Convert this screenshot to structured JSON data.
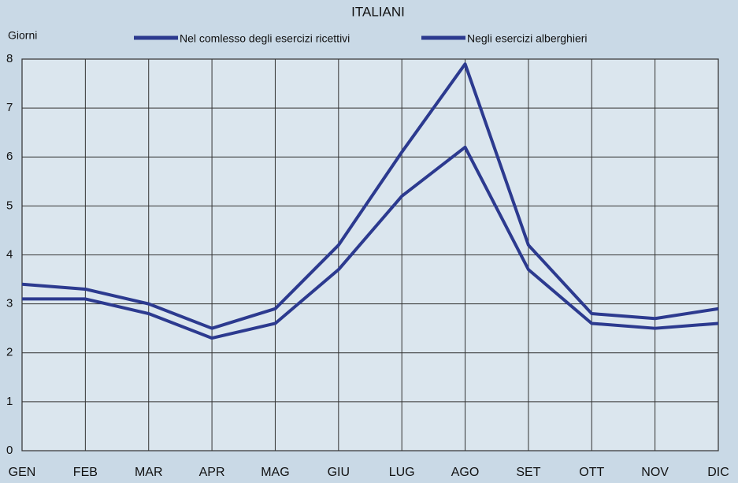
{
  "chart_data": {
    "type": "line",
    "title": "ITALIANI",
    "y_axis_label": "Giorni",
    "categories": [
      "GEN",
      "FEB",
      "MAR",
      "APR",
      "MAG",
      "GIU",
      "LUG",
      "AGO",
      "SET",
      "OTT",
      "NOV",
      "DIC"
    ],
    "series": [
      {
        "name": "Nel comlesso degli esercizi ricettivi",
        "color": "#2c3a8f",
        "values": [
          3.4,
          3.3,
          3.0,
          2.5,
          2.9,
          4.2,
          6.1,
          7.9,
          4.2,
          2.8,
          2.7,
          2.9
        ]
      },
      {
        "name": "Negli esercizi alberghieri",
        "color": "#2c3a8f",
        "values": [
          3.1,
          3.1,
          2.8,
          2.3,
          2.6,
          3.7,
          5.2,
          6.2,
          3.7,
          2.6,
          2.5,
          2.6
        ]
      }
    ],
    "ylim": [
      0,
      8
    ],
    "yticks": [
      0,
      1,
      2,
      3,
      4,
      5,
      6,
      7,
      8
    ],
    "grid": true
  }
}
